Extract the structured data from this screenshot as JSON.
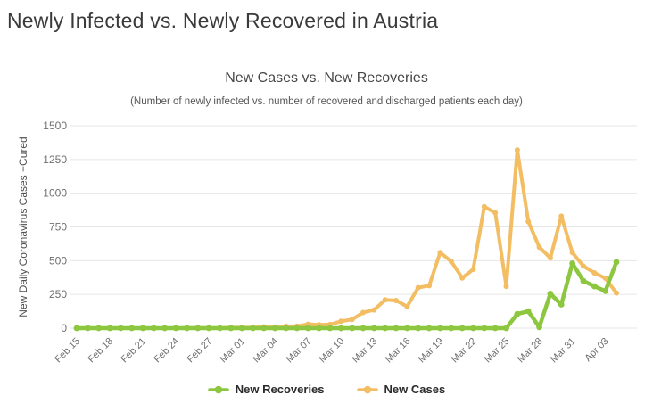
{
  "page": {
    "title": "Newly Infected vs. Newly Recovered in Austria"
  },
  "chart_data": {
    "type": "line",
    "title": "New Cases vs. New Recoveries",
    "subtitle": "(Number of newly infected vs. number of recovered and discharged patients each day)",
    "ylabel": "New Daily Coronavirus Cases +Cured",
    "xlabel": "",
    "ylim": [
      0,
      1500
    ],
    "yticks": [
      0,
      250,
      500,
      750,
      1000,
      1250,
      1500
    ],
    "grid": "horizontal",
    "legend_position": "bottom",
    "x_tick_interval": 3,
    "x_tick_labels": [
      "Feb 15",
      "Feb 18",
      "Feb 21",
      "Feb 24",
      "Feb 27",
      "Mar 01",
      "Mar 04",
      "Mar 07",
      "Mar 10",
      "Mar 13",
      "Mar 16",
      "Mar 19",
      "Mar 22",
      "Mar 25",
      "Mar 28",
      "Mar 31",
      "Apr 03"
    ],
    "x": [
      "Feb 15",
      "Feb 16",
      "Feb 17",
      "Feb 18",
      "Feb 19",
      "Feb 20",
      "Feb 21",
      "Feb 22",
      "Feb 23",
      "Feb 24",
      "Feb 25",
      "Feb 26",
      "Feb 27",
      "Feb 28",
      "Feb 29",
      "Mar 01",
      "Mar 02",
      "Mar 03",
      "Mar 04",
      "Mar 05",
      "Mar 06",
      "Mar 07",
      "Mar 08",
      "Mar 09",
      "Mar 10",
      "Mar 11",
      "Mar 12",
      "Mar 13",
      "Mar 14",
      "Mar 15",
      "Mar 16",
      "Mar 17",
      "Mar 18",
      "Mar 19",
      "Mar 20",
      "Mar 21",
      "Mar 22",
      "Mar 23",
      "Mar 24",
      "Mar 25",
      "Mar 26",
      "Mar 27",
      "Mar 28",
      "Mar 29",
      "Mar 30",
      "Mar 31",
      "Apr 01",
      "Apr 02",
      "Apr 03",
      "Apr 04"
    ],
    "series": [
      {
        "name": "New Recoveries",
        "color": "#8dc63f",
        "values": [
          0,
          0,
          0,
          0,
          0,
          0,
          0,
          0,
          0,
          0,
          0,
          0,
          0,
          0,
          0,
          0,
          0,
          0,
          0,
          0,
          0,
          0,
          0,
          0,
          0,
          0,
          0,
          0,
          0,
          0,
          0,
          0,
          0,
          0,
          0,
          0,
          0,
          0,
          0,
          0,
          105,
          125,
          8,
          255,
          175,
          480,
          350,
          310,
          275,
          490
        ]
      },
      {
        "name": "New Cases",
        "color": "#f3bd63",
        "values": [
          0,
          0,
          0,
          0,
          0,
          0,
          0,
          0,
          0,
          0,
          2,
          2,
          1,
          1,
          4,
          4,
          4,
          9,
          5,
          14,
          15,
          29,
          25,
          27,
          51,
          64,
          116,
          135,
          210,
          205,
          160,
          300,
          315,
          560,
          495,
          372,
          436,
          900,
          855,
          310,
          1321,
          790,
          600,
          520,
          830,
          560,
          460,
          410,
          370,
          260
        ]
      }
    ]
  }
}
